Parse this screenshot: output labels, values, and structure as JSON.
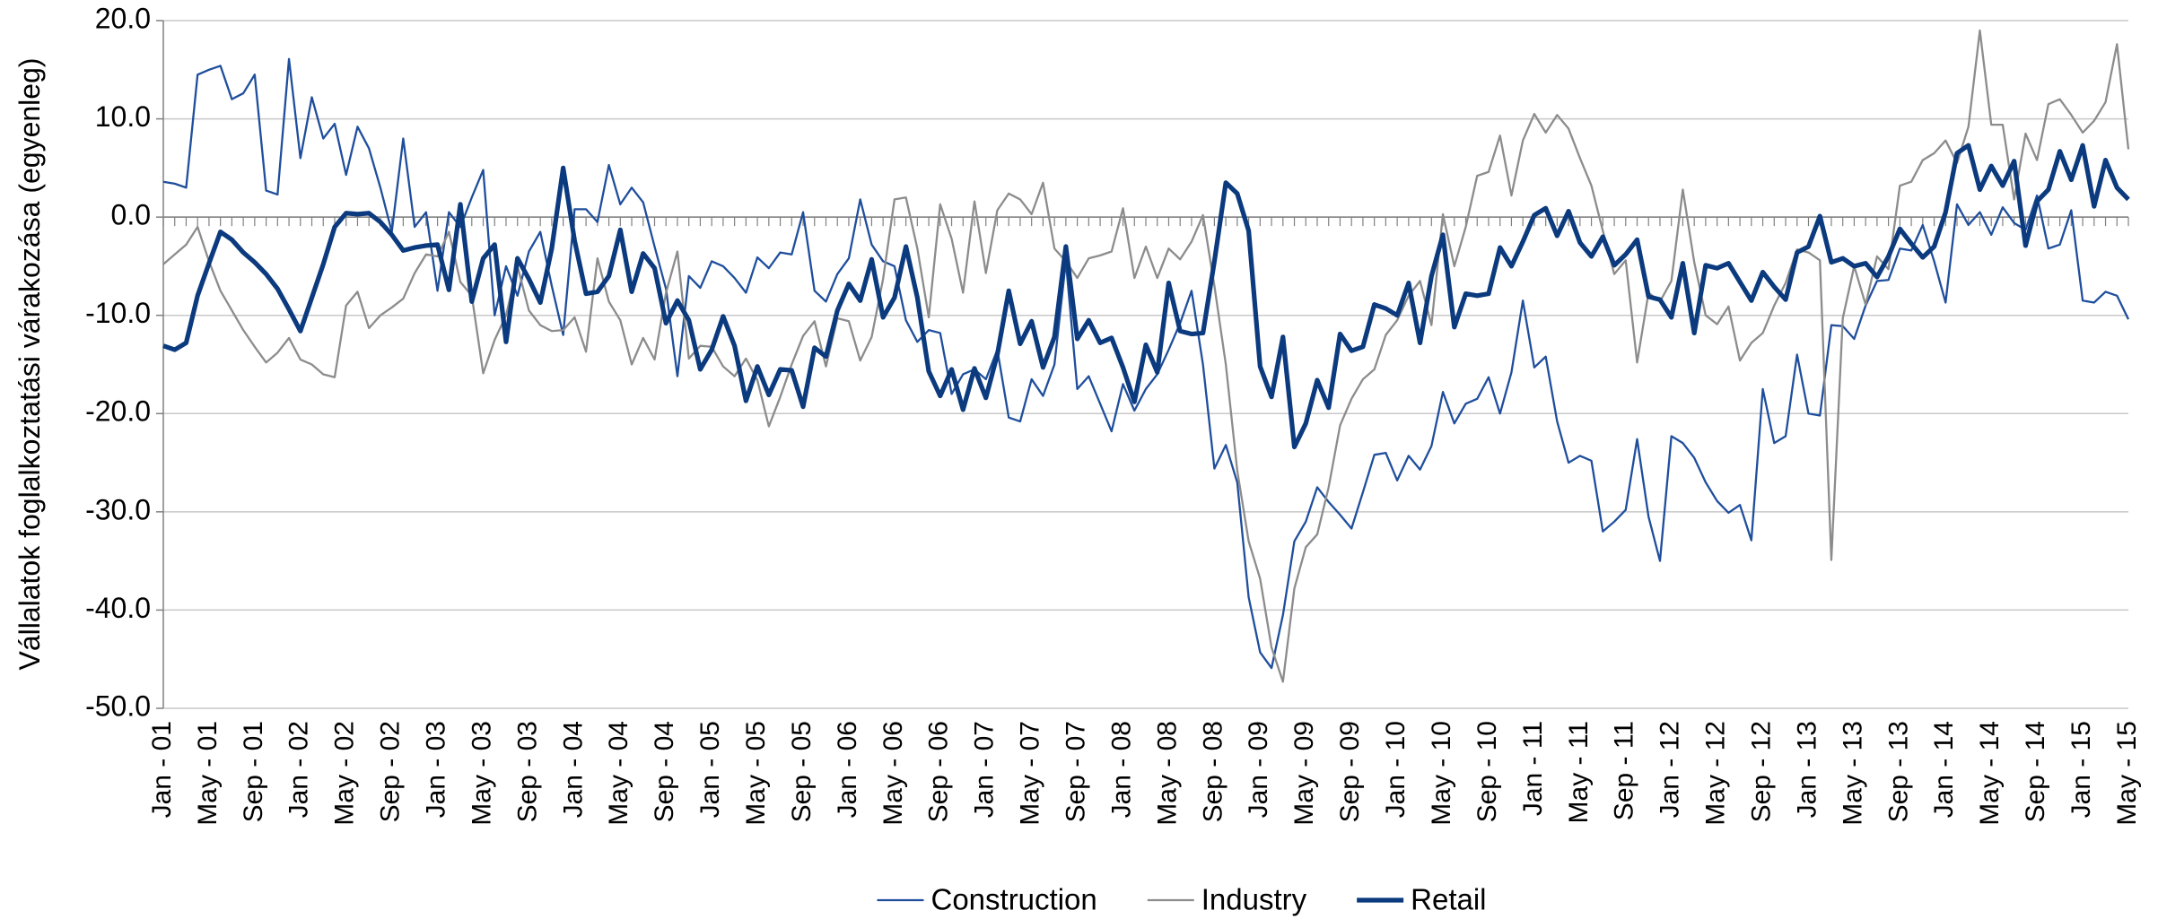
{
  "chart_data": {
    "type": "line",
    "y_label": "Vállalatok foglalkoztatási várakozása (egyenleg)",
    "ylim": [
      -50,
      20
    ],
    "yticks": [
      {
        "value": 20,
        "label": "20.0"
      },
      {
        "value": 10,
        "label": "10.0"
      },
      {
        "value": 0,
        "label": "0.0"
      },
      {
        "value": -10,
        "label": "-10.0"
      },
      {
        "value": -20,
        "label": "-20.0"
      },
      {
        "value": -30,
        "label": "-30.0"
      },
      {
        "value": -40,
        "label": "-40.0"
      },
      {
        "value": -50,
        "label": "-50.0"
      }
    ],
    "grid": true,
    "legend": "bottom",
    "categories": [
      "Jan - 01",
      null,
      null,
      null,
      "May - 01",
      null,
      null,
      null,
      "Sep - 01",
      null,
      null,
      null,
      "Jan - 02",
      null,
      null,
      null,
      "May - 02",
      null,
      null,
      null,
      "Sep - 02",
      null,
      null,
      null,
      "Jan - 03",
      null,
      null,
      null,
      "May - 03",
      null,
      null,
      null,
      "Sep - 03",
      null,
      null,
      null,
      "Jan - 04",
      null,
      null,
      null,
      "May - 04",
      null,
      null,
      null,
      "Sep - 04",
      null,
      null,
      null,
      "Jan - 05",
      null,
      null,
      null,
      "May - 05",
      null,
      null,
      null,
      "Sep - 05",
      null,
      null,
      null,
      "Jan - 06",
      null,
      null,
      null,
      "May - 06",
      null,
      null,
      null,
      "Sep - 06",
      null,
      null,
      null,
      "Jan - 07",
      null,
      null,
      null,
      "May - 07",
      null,
      null,
      null,
      "Sep - 07",
      null,
      null,
      null,
      "Jan - 08",
      null,
      null,
      null,
      "May - 08",
      null,
      null,
      null,
      "Sep - 08",
      null,
      null,
      null,
      "Jan - 09",
      null,
      null,
      null,
      "May - 09",
      null,
      null,
      null,
      "Sep - 09",
      null,
      null,
      null,
      "Jan - 10",
      null,
      null,
      null,
      "May - 10",
      null,
      null,
      null,
      "Sep - 10",
      null,
      null,
      null,
      "Jan - 11",
      null,
      null,
      null,
      "May - 11",
      null,
      null,
      null,
      "Sep - 11",
      null,
      null,
      null,
      "Jan - 12",
      null,
      null,
      null,
      "May - 12",
      null,
      null,
      null,
      "Sep - 12",
      null,
      null,
      null,
      "Jan - 13",
      null,
      null,
      null,
      "May - 13",
      null,
      null,
      null,
      "Sep - 13",
      null,
      null,
      null,
      "Jan - 14",
      null,
      null,
      null,
      "May - 14",
      null,
      null,
      null,
      "Sep - 14",
      null,
      null,
      null,
      "Jan - 15",
      null,
      null,
      null,
      "May - 15"
    ],
    "series": [
      {
        "name": "Construction",
        "color": "#1f4e9c",
        "values": [
          3.6,
          3.4,
          3.0,
          14.5,
          15.0,
          15.4,
          12.0,
          12.6,
          14.5,
          2.7,
          2.3,
          16.1,
          6.0,
          12.2,
          8.0,
          9.5,
          4.3,
          9.2,
          7.0,
          3.0,
          -1.5,
          8.0,
          -1.0,
          0.5,
          -7.5,
          0.5,
          -1.0,
          2.0,
          4.8,
          -10.0,
          -5.0,
          -8.0,
          -3.5,
          -1.5,
          -7.0,
          -12.0,
          0.8,
          0.8,
          -0.5,
          5.3,
          1.3,
          3.0,
          1.5,
          -3.0,
          -7.3,
          -16.2,
          -6.0,
          -7.2,
          -4.5,
          -5.0,
          -6.2,
          -7.7,
          -4.1,
          -5.2,
          -3.6,
          -3.8,
          0.5,
          -7.5,
          -8.6,
          -5.8,
          -4.2,
          1.8,
          -2.8,
          -4.5,
          -5.0,
          -10.5,
          -12.7,
          -11.5,
          -11.8,
          -18.0,
          -16.0,
          -15.5,
          -16.5,
          -13.5,
          -20.4,
          -20.8,
          -16.5,
          -18.2,
          -15.0,
          -4.5,
          -17.5,
          -16.2,
          -19.0,
          -21.8,
          -17.0,
          -19.7,
          -17.5,
          -16.0,
          -13.5,
          -10.8,
          -7.5,
          -15.0,
          -25.6,
          -23.2,
          -27.0,
          -38.7,
          -44.3,
          -45.9,
          -40.5,
          -33.0,
          -31.0,
          -27.5,
          -29.0,
          -30.3,
          -31.7,
          -28.0,
          -24.2,
          -24.0,
          -26.8,
          -24.3,
          -25.7,
          -23.3,
          -17.8,
          -21.0,
          -19.0,
          -18.5,
          -16.3,
          -20.0,
          -15.8,
          -8.5,
          -15.3,
          -14.2,
          -20.8,
          -25.0,
          -24.3,
          -24.8,
          -32.0,
          -31.0,
          -29.8,
          -22.6,
          -30.5,
          -35.0,
          -22.3,
          -23.0,
          -24.5,
          -27.0,
          -28.9,
          -30.1,
          -29.3,
          -32.9,
          -17.5,
          -23.0,
          -22.3,
          -14.0,
          -20.0,
          -20.2,
          -11.0,
          -11.1,
          -12.4,
          -9.0,
          -6.5,
          -6.4,
          -3.2,
          -3.4,
          -0.8,
          -4.5,
          -8.7,
          1.3,
          -0.8,
          0.5,
          -1.8,
          1.0,
          -0.6,
          -1.3,
          2.2,
          -3.2,
          -2.8,
          0.7,
          -8.5,
          -8.7,
          -7.6,
          -8.0,
          -10.4
        ]
      },
      {
        "name": "Industry",
        "color": "#8c8c8c",
        "values": [
          -4.8,
          -3.8,
          -2.8,
          -1.0,
          -4.5,
          -7.5,
          -9.5,
          -11.5,
          -13.2,
          -14.8,
          -13.8,
          -12.3,
          -14.5,
          -15.0,
          -16.0,
          -16.3,
          -9.0,
          -7.6,
          -11.3,
          -10.0,
          -9.2,
          -8.3,
          -5.7,
          -3.8,
          -4.0,
          -1.5,
          -6.6,
          -8.0,
          -15.9,
          -12.5,
          -10.0,
          -5.0,
          -9.5,
          -11.0,
          -11.6,
          -11.5,
          -10.2,
          -13.7,
          -4.2,
          -8.6,
          -10.5,
          -15.0,
          -12.3,
          -14.5,
          -7.7,
          -3.5,
          -14.4,
          -13.1,
          -13.2,
          -15.2,
          -16.2,
          -14.4,
          -16.6,
          -21.3,
          -18.3,
          -15.0,
          -12.1,
          -10.6,
          -15.2,
          -10.3,
          -10.6,
          -14.6,
          -12.2,
          -6.3,
          1.8,
          2.0,
          -3.2,
          -10.2,
          1.3,
          -2.2,
          -7.7,
          1.6,
          -5.7,
          0.7,
          2.4,
          1.8,
          0.3,
          3.5,
          -3.2,
          -4.5,
          -6.2,
          -4.2,
          -3.9,
          -3.5,
          0.9,
          -6.2,
          -3.0,
          -6.2,
          -3.2,
          -4.3,
          -2.5,
          0.2,
          -7.0,
          -15.0,
          -25.8,
          -33.0,
          -36.8,
          -43.8,
          -47.3,
          -37.8,
          -33.6,
          -32.3,
          -27.5,
          -21.2,
          -18.5,
          -16.5,
          -15.5,
          -12.0,
          -10.5,
          -8.0,
          -6.5,
          -11.0,
          0.3,
          -5.0,
          -1.0,
          4.2,
          4.6,
          8.3,
          2.2,
          7.8,
          10.5,
          8.6,
          10.4,
          9.0,
          6.0,
          3.2,
          -1.4,
          -5.8,
          -4.4,
          -14.8,
          -7.7,
          -8.6,
          -6.5,
          2.8,
          -4.6,
          -10.0,
          -10.9,
          -9.1,
          -14.6,
          -12.8,
          -11.8,
          -9.0,
          -6.7,
          -3.3,
          -3.6,
          -4.4,
          -34.9,
          -10.3,
          -5.0,
          -8.9,
          -4.0,
          -5.3,
          3.2,
          3.6,
          5.8,
          6.5,
          7.8,
          5.5,
          9.2,
          19.0,
          9.4,
          9.4,
          1.8,
          8.5,
          5.8,
          11.5,
          12.0,
          10.4,
          8.6,
          9.8,
          11.7,
          17.6,
          6.9
        ]
      },
      {
        "name": "Retail",
        "color": "#0b3a7e",
        "values": [
          -13.1,
          -13.5,
          -12.8,
          -8.0,
          -4.7,
          -1.5,
          -2.3,
          -3.6,
          -4.6,
          -5.8,
          -7.3,
          -9.4,
          -11.6,
          -8.2,
          -4.8,
          -1.0,
          0.4,
          0.3,
          0.4,
          -0.5,
          -1.8,
          -3.4,
          -3.1,
          -2.9,
          -2.8,
          -7.4,
          1.3,
          -8.6,
          -4.2,
          -2.8,
          -12.7,
          -4.2,
          -6.3,
          -8.7,
          -3.2,
          5.0,
          -2.4,
          -7.8,
          -7.6,
          -6.0,
          -1.3,
          -7.6,
          -3.7,
          -5.2,
          -10.8,
          -8.5,
          -10.5,
          -15.5,
          -13.5,
          -10.1,
          -13.1,
          -18.7,
          -15.2,
          -18.1,
          -15.5,
          -15.6,
          -19.3,
          -13.3,
          -14.2,
          -9.5,
          -6.8,
          -8.5,
          -4.3,
          -10.2,
          -8.2,
          -3.0,
          -8.2,
          -15.7,
          -18.2,
          -15.5,
          -19.6,
          -15.4,
          -18.4,
          -14.0,
          -7.5,
          -12.9,
          -10.6,
          -15.3,
          -12.2,
          -3.0,
          -12.4,
          -10.5,
          -12.8,
          -12.3,
          -15.3,
          -18.8,
          -13.0,
          -15.8,
          -6.7,
          -11.6,
          -11.9,
          -11.8,
          -4.5,
          3.5,
          2.4,
          -1.4,
          -15.2,
          -18.3,
          -12.2,
          -23.4,
          -21.0,
          -16.6,
          -19.4,
          -11.9,
          -13.6,
          -13.2,
          -8.9,
          -9.3,
          -10.0,
          -6.7,
          -12.8,
          -6.0,
          -1.8,
          -11.2,
          -7.8,
          -8.0,
          -7.8,
          -3.1,
          -5.0,
          -2.5,
          0.2,
          0.9,
          -1.9,
          0.6,
          -2.6,
          -4.0,
          -2.0,
          -4.9,
          -3.8,
          -2.3,
          -8.1,
          -8.4,
          -10.2,
          -4.7,
          -11.8,
          -4.9,
          -5.2,
          -4.7,
          -6.6,
          -8.5,
          -5.6,
          -7.1,
          -8.4,
          -3.6,
          -3.0,
          0.1,
          -4.6,
          -4.2,
          -5.0,
          -4.7,
          -6.1,
          -4.0,
          -1.2,
          -2.7,
          -4.1,
          -3.0,
          0.5,
          6.5,
          7.3,
          2.8,
          5.2,
          3.2,
          5.7,
          -2.9,
          1.6,
          2.8,
          6.7,
          3.8,
          7.3,
          1.1,
          5.8,
          3.0,
          1.8
        ]
      }
    ]
  }
}
